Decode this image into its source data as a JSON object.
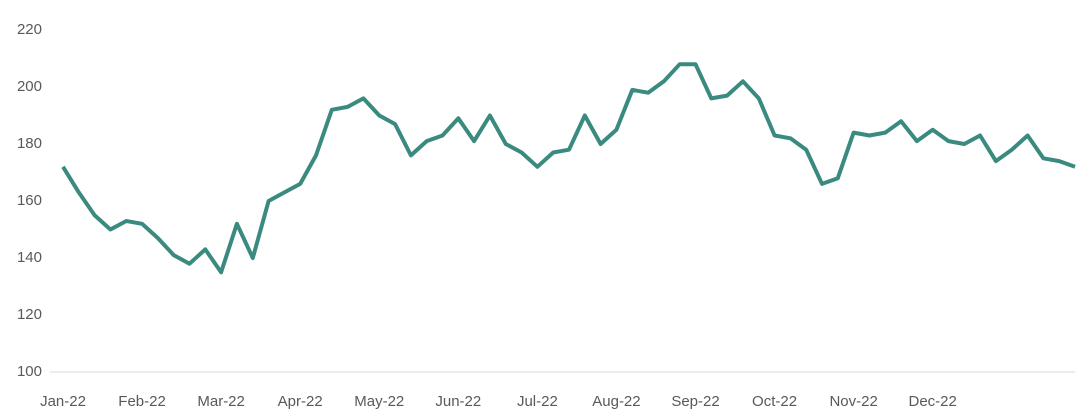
{
  "chart_data": {
    "type": "line",
    "categories": [
      "Jan-22",
      null,
      null,
      null,
      null,
      "Feb-22",
      null,
      null,
      null,
      null,
      "Mar-22",
      null,
      null,
      null,
      null,
      "Apr-22",
      null,
      null,
      null,
      null,
      "May-22",
      null,
      null,
      null,
      null,
      "Jun-22",
      null,
      null,
      null,
      null,
      "Jul-22",
      null,
      null,
      null,
      null,
      "Aug-22",
      null,
      null,
      null,
      null,
      "Sep-22",
      null,
      null,
      null,
      null,
      "Oct-22",
      null,
      null,
      null,
      null,
      "Nov-22",
      null,
      null,
      null,
      null,
      "Dec-22",
      null,
      null,
      null,
      null,
      null,
      null,
      null,
      null,
      null
    ],
    "values": [
      172,
      163,
      155,
      150,
      153,
      152,
      147,
      141,
      138,
      143,
      135,
      152,
      140,
      160,
      163,
      166,
      176,
      192,
      193,
      196,
      190,
      187,
      176,
      181,
      183,
      189,
      181,
      190,
      180,
      177,
      172,
      177,
      178,
      190,
      180,
      185,
      199,
      198,
      202,
      208,
      208,
      196,
      197,
      202,
      196,
      183,
      182,
      178,
      166,
      168,
      184,
      183,
      184,
      188,
      181,
      185,
      181,
      180,
      183,
      174,
      178,
      183,
      175,
      174,
      172
    ],
    "color": "#3a8a80",
    "ylim": [
      100,
      220
    ],
    "yticks": [
      100,
      120,
      140,
      160,
      180,
      200,
      220
    ],
    "grid": false
  }
}
